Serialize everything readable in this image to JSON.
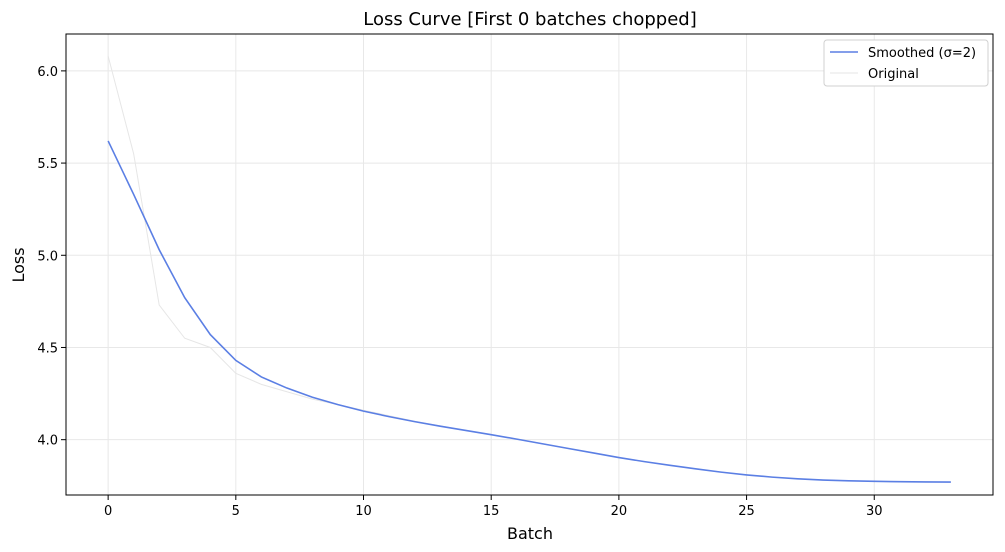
{
  "chart_data": {
    "type": "line",
    "title": "Loss Curve [First 0 batches chopped]",
    "xlabel": "Batch",
    "ylabel": "Loss",
    "xlim": [
      -1.65,
      34.65
    ],
    "ylim": [
      3.7,
      6.2
    ],
    "xticks": [
      0,
      5,
      10,
      15,
      20,
      25,
      30
    ],
    "yticks": [
      4.0,
      4.5,
      5.0,
      5.5,
      6.0
    ],
    "xtick_labels": [
      "0",
      "5",
      "10",
      "15",
      "20",
      "25",
      "30"
    ],
    "ytick_labels": [
      "4.0",
      "4.5",
      "5.0",
      "5.5",
      "6.0"
    ],
    "grid": true,
    "legend_position": "top-right",
    "x": [
      0,
      1,
      2,
      3,
      4,
      5,
      6,
      7,
      8,
      9,
      10,
      11,
      12,
      13,
      14,
      15,
      16,
      17,
      18,
      19,
      20,
      21,
      22,
      23,
      24,
      25,
      26,
      27,
      28,
      29,
      30,
      31,
      32,
      33
    ],
    "series": [
      {
        "name": "Smoothed (σ=2)",
        "color": "#5b7fe4",
        "values": [
          5.62,
          5.33,
          5.03,
          4.77,
          4.57,
          4.43,
          4.34,
          4.28,
          4.23,
          4.19,
          4.155,
          4.125,
          4.098,
          4.073,
          4.05,
          4.027,
          4.003,
          3.978,
          3.953,
          3.928,
          3.903,
          3.881,
          3.861,
          3.842,
          3.824,
          3.809,
          3.797,
          3.788,
          3.781,
          3.777,
          3.774,
          3.772,
          3.771,
          3.77
        ]
      },
      {
        "name": "Original",
        "color": "#e6e6e6",
        "values": [
          6.08,
          5.55,
          4.73,
          4.55,
          4.5,
          4.36,
          4.3,
          4.26,
          4.22,
          4.19,
          4.16,
          4.13,
          4.1,
          4.075,
          4.05,
          4.027,
          4.003,
          3.978,
          3.953,
          3.928,
          3.903,
          3.881,
          3.861,
          3.842,
          3.824,
          3.809,
          3.797,
          3.788,
          3.781,
          3.777,
          3.774,
          3.772,
          3.771,
          3.77
        ]
      }
    ]
  }
}
